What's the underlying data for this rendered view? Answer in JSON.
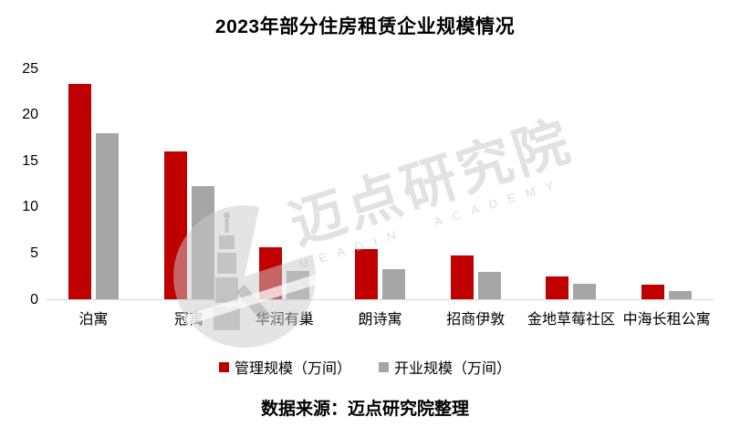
{
  "title": "2023年部分住房租赁企业规模情况",
  "footer": "数据来源：迈点研究院整理",
  "watermark": {
    "cn": "迈点研究院",
    "en": "MEADIN ACADEMY",
    "logo_icon": "meadin-tower-logo"
  },
  "colors": {
    "series_red": "#c00000",
    "series_gray": "#a6a6a6",
    "axis_line": "#d9d9d9",
    "watermark_gray": "#cccccc"
  },
  "chart_data": {
    "type": "bar",
    "title": "2023年部分住房租赁企业规模情况",
    "categories": [
      "泊寓",
      "冠寓",
      "华润有巢",
      "朗诗寓",
      "招商伊敦",
      "金地草莓社区",
      "中海长租公寓"
    ],
    "series": [
      {
        "name": "管理规模（万间）",
        "color": "#c00000",
        "values": [
          23.3,
          16.0,
          5.6,
          5.4,
          4.7,
          2.5,
          1.6
        ]
      },
      {
        "name": "开业规模（万间）",
        "color": "#a6a6a6",
        "values": [
          18.0,
          12.3,
          3.1,
          3.3,
          3.0,
          1.7,
          0.9
        ]
      }
    ],
    "xlabel": "",
    "ylabel": "",
    "ylim": [
      0,
      25
    ],
    "yticks": [
      0,
      5,
      10,
      15,
      20,
      25
    ],
    "grid": false,
    "legend_position": "bottom",
    "source_note": "数据来源：迈点研究院整理"
  }
}
